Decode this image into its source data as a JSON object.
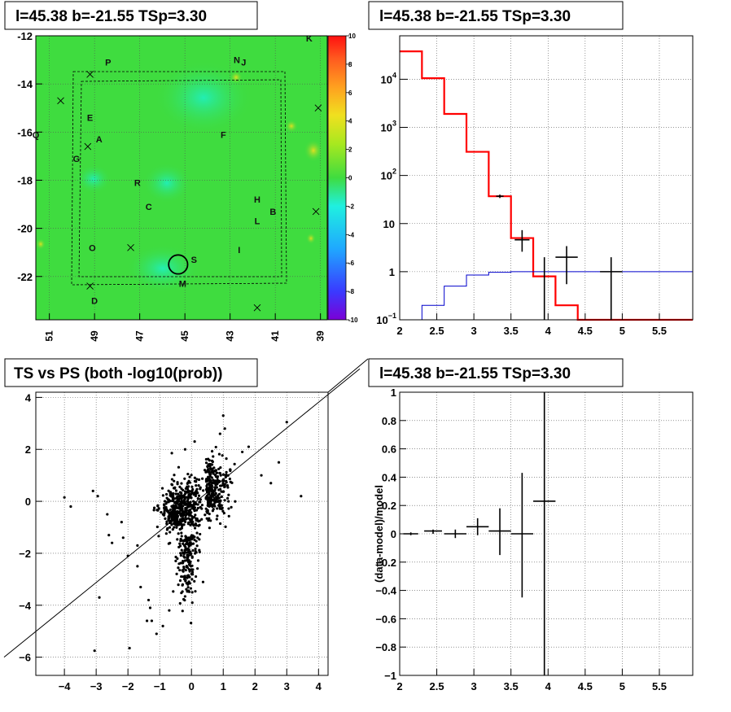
{
  "colors": {
    "map_bg": "#3fdc3f",
    "model_hist": "#ff0000",
    "model_low": "#0000cc",
    "data": "#000000",
    "grid": "#555555"
  },
  "chart_data": [
    {
      "type": "heatmap",
      "title": "l=45.38 b=-21.55 TSp=3.30",
      "x_ticks": [
        "51",
        "49",
        "47",
        "45",
        "43",
        "41",
        "39"
      ],
      "x_tick_values": [
        51,
        49,
        47,
        45,
        43,
        41,
        39
      ],
      "xlim": [
        51.6,
        38.7
      ],
      "y_ticks": [
        "-12",
        "-14",
        "-16",
        "-18",
        "-20",
        "-22"
      ],
      "y_tick_values": [
        -12,
        -14,
        -16,
        -18,
        -20,
        -22
      ],
      "ylim": [
        -23.8,
        -12
      ],
      "colorbar_ticks": [
        "10",
        "8",
        "6",
        "4",
        "2",
        "0",
        "-2",
        "-4",
        "-6",
        "-8",
        "-10"
      ],
      "colorbar_range": [
        -10,
        10
      ],
      "source_labels": [
        {
          "name": "K",
          "l": 39.5,
          "b": -12.1
        },
        {
          "name": "P",
          "l": 48.4,
          "b": -13.1
        },
        {
          "name": "N",
          "l": 42.7,
          "b": -13.0
        },
        {
          "name": "J",
          "l": 42.4,
          "b": -13.1
        },
        {
          "name": "E",
          "l": 49.2,
          "b": -15.4
        },
        {
          "name": "A",
          "l": 48.8,
          "b": -16.3
        },
        {
          "name": "F",
          "l": 43.3,
          "b": -16.1
        },
        {
          "name": "G",
          "l": 49.8,
          "b": -17.1
        },
        {
          "name": "R",
          "l": 47.1,
          "b": -18.1
        },
        {
          "name": "C",
          "l": 46.6,
          "b": -19.1
        },
        {
          "name": "H",
          "l": 41.8,
          "b": -18.8
        },
        {
          "name": "B",
          "l": 41.1,
          "b": -19.3
        },
        {
          "name": "L",
          "l": 41.8,
          "b": -19.7
        },
        {
          "name": "O",
          "l": 49.1,
          "b": -20.8
        },
        {
          "name": "I",
          "l": 42.6,
          "b": -20.9
        },
        {
          "name": "S",
          "l": 44.6,
          "b": -21.3
        },
        {
          "name": "M",
          "l": 45.1,
          "b": -22.3
        },
        {
          "name": "D",
          "l": 49.0,
          "b": -23.0
        },
        {
          "name": "Q",
          "l": 51.6,
          "b": -16.1
        }
      ],
      "markers": [
        {
          "l": 49.2,
          "b": -13.6
        },
        {
          "l": 50.5,
          "b": -14.7
        },
        {
          "l": 39.1,
          "b": -15.0
        },
        {
          "l": 49.3,
          "b": -16.6
        },
        {
          "l": 39.2,
          "b": -19.3
        },
        {
          "l": 47.4,
          "b": -20.8
        },
        {
          "l": 49.2,
          "b": -22.4
        },
        {
          "l": 41.8,
          "b": -23.3
        }
      ],
      "circle": {
        "l": 45.3,
        "b": -21.5,
        "r_deg": 0.42
      }
    },
    {
      "type": "line",
      "title": "l=45.38 b=-21.55 TSp=3.30",
      "y_scale": "log",
      "xlim": [
        2,
        5.95
      ],
      "ylim": [
        0.1,
        80000
      ],
      "x_ticks": [
        "2",
        "2.5",
        "3",
        "3.5",
        "4",
        "4.5",
        "5",
        "5.5"
      ],
      "x_tick_values": [
        2,
        2.5,
        3,
        3.5,
        4,
        4.5,
        5,
        5.5
      ],
      "y_ticks": [
        {
          "value": 10000,
          "base": "10",
          "exp": "4"
        },
        {
          "value": 1000,
          "base": "10",
          "exp": "3"
        },
        {
          "value": 100,
          "base": "10",
          "exp": "2"
        },
        {
          "value": 10,
          "base": "10",
          "exp": ""
        },
        {
          "value": 1,
          "base": "1",
          "exp": ""
        },
        {
          "value": 0.1,
          "base": "10",
          "exp": "−1"
        }
      ],
      "series": [
        {
          "steps_x": [
            2,
            2.3,
            2.6,
            2.9,
            3.2,
            3.5,
            3.8,
            4.1,
            4.4,
            5.95
          ],
          "values": [
            38000,
            10500,
            1900,
            310,
            37,
            5,
            0.8,
            0.2,
            0.1
          ]
        },
        {
          "steps_x": [
            2,
            2.3,
            2.6,
            2.9,
            3.2,
            3.5,
            3.8,
            4.1,
            4.4,
            5.95
          ],
          "values": [
            0.1,
            0.2,
            0.5,
            0.85,
            0.97,
            1.0,
            1.0,
            1.0,
            1.0
          ]
        }
      ],
      "points": [
        {
          "x": 3.35,
          "y": 37,
          "xerr": 0.05,
          "ylo": 34,
          "yhi": 40
        },
        {
          "x": 3.65,
          "y": 4.6,
          "xerr": 0.1,
          "ylo": 2.6,
          "yhi": 7.3
        },
        {
          "x": 3.95,
          "y": 0.1,
          "xerr": 0,
          "ylo": 0.1,
          "yhi": 2.0
        },
        {
          "x": 4.25,
          "y": 2.0,
          "xerr": 0.15,
          "ylo": 0.55,
          "yhi": 3.4
        },
        {
          "x": 4.85,
          "y": 1.0,
          "xerr": 0.15,
          "ylo": 0.1,
          "yhi": 2.0
        }
      ]
    },
    {
      "type": "scatter",
      "title": "TS vs PS (both -log10(prob))",
      "xlim": [
        -4.9,
        4.3
      ],
      "ylim": [
        -6.7,
        4.2
      ],
      "x_ticks": [
        "−4",
        "−3",
        "−2",
        "−1",
        "0",
        "1",
        "2",
        "3",
        "4"
      ],
      "x_tick_values": [
        -4,
        -3,
        -2,
        -1,
        0,
        1,
        2,
        3,
        4
      ],
      "y_ticks": [
        "4",
        "2",
        "0",
        "−2",
        "−4",
        "−6"
      ],
      "y_tick_values": [
        4,
        2,
        0,
        -2,
        -4,
        -6
      ],
      "diagonal": {
        "x1": -5.9,
        "y1": -6.0,
        "x2": 5.3,
        "y2": 5.1
      },
      "outliers": [
        [
          -4.0,
          0.15
        ],
        [
          -3.8,
          -0.2
        ],
        [
          -3.1,
          0.4
        ],
        [
          -2.95,
          0.2
        ],
        [
          -2.65,
          -0.5
        ],
        [
          -2.6,
          -1.3
        ],
        [
          -2.5,
          -1.6
        ],
        [
          -2.0,
          -2.1
        ],
        [
          -2.2,
          -0.8
        ],
        [
          -3.05,
          -5.75
        ],
        [
          -1.95,
          -5.65
        ],
        [
          -1.3,
          -4.1
        ],
        [
          -1.25,
          -4.6
        ],
        [
          -1.35,
          -3.8
        ],
        [
          -1.6,
          -3.3
        ],
        [
          -1.7,
          -2.5
        ],
        [
          -1.1,
          -5.1
        ],
        [
          -0.9,
          -4.8
        ],
        [
          -0.7,
          -4.2
        ],
        [
          -1.4,
          -4.6
        ],
        [
          3.0,
          3.05
        ],
        [
          3.45,
          0.2
        ],
        [
          2.75,
          1.5
        ],
        [
          2.2,
          1.0
        ],
        [
          2.5,
          0.7
        ],
        [
          1.0,
          3.3
        ],
        [
          1.05,
          2.8
        ],
        [
          0.9,
          2.6
        ],
        [
          1.6,
          1.9
        ],
        [
          1.8,
          2.1
        ],
        [
          -0.2,
          2.0
        ],
        [
          0.1,
          2.3
        ],
        [
          -2.15,
          -1.4
        ],
        [
          -1.7,
          -1.7
        ],
        [
          -2.9,
          -3.7
        ]
      ]
    },
    {
      "type": "line",
      "title": "l=45.38 b=-21.55 TSp=3.30",
      "ylabel": "(data-model)/model",
      "xlim": [
        2,
        5.95
      ],
      "ylim": [
        -1,
        1
      ],
      "x_ticks": [
        "2",
        "2.5",
        "3",
        "3.5",
        "4",
        "4.5",
        "5",
        "5.5"
      ],
      "x_tick_values": [
        2,
        2.5,
        3,
        3.5,
        4,
        4.5,
        5,
        5.5
      ],
      "y_ticks": [
        "1",
        "0.8",
        "0.6",
        "0.4",
        "0.2",
        "0",
        "−0.2",
        "−0.4",
        "−0.6",
        "−0.8",
        "−1"
      ],
      "y_tick_values": [
        1,
        0.8,
        0.6,
        0.4,
        0.2,
        0,
        -0.2,
        -0.4,
        -0.6,
        -0.8,
        -1
      ],
      "points": [
        {
          "x": 2.15,
          "y": 0.0,
          "xerr": 0.1,
          "ylo": -0.01,
          "yhi": 0.01
        },
        {
          "x": 2.45,
          "y": 0.02,
          "xerr": 0.12,
          "ylo": 0.0,
          "yhi": 0.03
        },
        {
          "x": 2.75,
          "y": 0.0,
          "xerr": 0.15,
          "ylo": -0.03,
          "yhi": 0.03
        },
        {
          "x": 3.05,
          "y": 0.05,
          "xerr": 0.15,
          "ylo": -0.01,
          "yhi": 0.11
        },
        {
          "x": 3.35,
          "y": 0.02,
          "xerr": 0.15,
          "ylo": -0.15,
          "yhi": 0.18
        },
        {
          "x": 3.65,
          "y": 0.0,
          "xerr": 0.15,
          "ylo": -0.45,
          "yhi": 0.43
        },
        {
          "x": 3.95,
          "y": 0.23,
          "xerr": 0.15,
          "ylo": -1.0,
          "yhi": 1.0
        }
      ]
    }
  ]
}
